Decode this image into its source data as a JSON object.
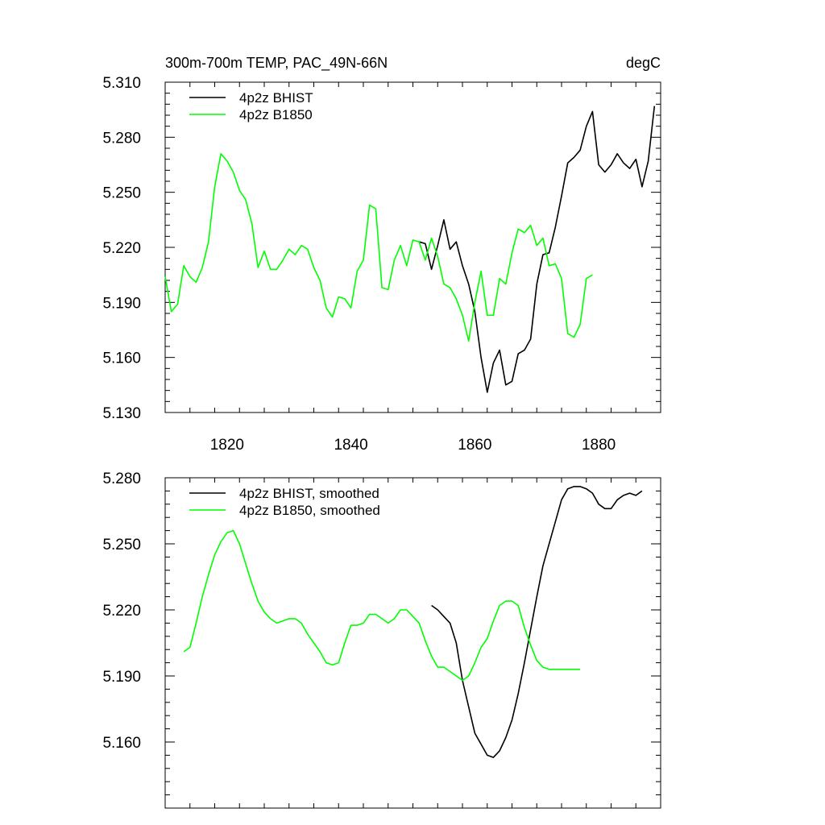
{
  "chart_data": [
    {
      "type": "line",
      "title_left": "300m-700m TEMP, PAC_49N-66N",
      "title_right": "degC",
      "xlim": [
        1810,
        1890
      ],
      "ylim": [
        5.13,
        5.31
      ],
      "y_ticks": [
        5.13,
        5.16,
        5.19,
        5.22,
        5.25,
        5.28,
        5.31
      ],
      "y_tick_labels": [
        "5.130",
        "5.160",
        "5.190",
        "5.220",
        "5.250",
        "5.280",
        "5.310"
      ],
      "x_ticks": [
        1820,
        1840,
        1860,
        1880
      ],
      "x_tick_labels": [
        "1820",
        "1840",
        "1860",
        "1880"
      ],
      "legend_position": "top-left",
      "series": [
        {
          "name": "4p2z BHIST",
          "color": "#000000",
          "x": [
            1851,
            1852,
            1853,
            1854,
            1855,
            1856,
            1857,
            1858,
            1859,
            1860,
            1861,
            1862,
            1863,
            1864,
            1865,
            1866,
            1867,
            1868,
            1869,
            1870,
            1871,
            1872,
            1873,
            1874,
            1875,
            1876,
            1877,
            1878,
            1879,
            1880,
            1881,
            1882,
            1883,
            1884,
            1885,
            1886,
            1887,
            1888,
            1889
          ],
          "y": [
            5.223,
            5.222,
            5.208,
            5.221,
            5.235,
            5.219,
            5.223,
            5.21,
            5.2,
            5.185,
            5.16,
            5.141,
            5.157,
            5.164,
            5.145,
            5.147,
            5.162,
            5.164,
            5.17,
            5.2,
            5.216,
            5.217,
            5.231,
            5.248,
            5.266,
            5.269,
            5.273,
            5.286,
            5.294,
            5.265,
            5.261,
            5.265,
            5.271,
            5.266,
            5.263,
            5.268,
            5.253,
            5.267,
            5.297
          ]
        },
        {
          "name": "4p2z B1850",
          "color": "#00ff00",
          "x": [
            1810,
            1811,
            1812,
            1813,
            1814,
            1815,
            1816,
            1817,
            1818,
            1819,
            1820,
            1821,
            1822,
            1823,
            1824,
            1825,
            1826,
            1827,
            1828,
            1829,
            1830,
            1831,
            1832,
            1833,
            1834,
            1835,
            1836,
            1837,
            1838,
            1839,
            1840,
            1841,
            1842,
            1843,
            1844,
            1845,
            1846,
            1847,
            1848,
            1849,
            1850,
            1851,
            1852,
            1853,
            1854,
            1855,
            1856,
            1857,
            1858,
            1859,
            1860,
            1861,
            1862,
            1863,
            1864,
            1865,
            1866,
            1867,
            1868,
            1869,
            1870,
            1871,
            1872,
            1873,
            1874,
            1875,
            1876,
            1877,
            1878,
            1879
          ],
          "y": [
            5.204,
            5.185,
            5.189,
            5.21,
            5.204,
            5.201,
            5.209,
            5.223,
            5.253,
            5.271,
            5.267,
            5.261,
            5.251,
            5.246,
            5.233,
            5.209,
            5.218,
            5.208,
            5.208,
            5.213,
            5.219,
            5.216,
            5.221,
            5.219,
            5.209,
            5.202,
            5.187,
            5.182,
            5.193,
            5.192,
            5.187,
            5.207,
            5.213,
            5.243,
            5.241,
            5.198,
            5.197,
            5.213,
            5.221,
            5.21,
            5.224,
            5.223,
            5.213,
            5.225,
            5.215,
            5.2,
            5.198,
            5.192,
            5.183,
            5.169,
            5.19,
            5.207,
            5.183,
            5.183,
            5.203,
            5.2,
            5.217,
            5.23,
            5.228,
            5.232,
            5.221,
            5.225,
            5.21,
            5.211,
            5.203,
            5.173,
            5.171,
            5.178,
            5.203,
            5.205
          ]
        }
      ]
    },
    {
      "type": "line",
      "xlim": [
        1810,
        1890
      ],
      "ylim": [
        5.13,
        5.28
      ],
      "y_ticks": [
        5.16,
        5.19,
        5.22,
        5.25,
        5.28
      ],
      "y_tick_labels": [
        "5.160",
        "5.190",
        "5.220",
        "5.250",
        "5.280"
      ],
      "x_ticks": [
        1820,
        1840,
        1860,
        1880
      ],
      "legend_position": "top-left",
      "series": [
        {
          "name": "4p2z BHIST, smoothed",
          "color": "#000000",
          "x": [
            1853,
            1854,
            1855,
            1856,
            1857,
            1858,
            1859,
            1860,
            1861,
            1862,
            1863,
            1864,
            1865,
            1866,
            1867,
            1868,
            1869,
            1870,
            1871,
            1872,
            1873,
            1874,
            1875,
            1876,
            1877,
            1878,
            1879,
            1880,
            1881,
            1882,
            1883,
            1884,
            1885,
            1886,
            1887
          ],
          "y": [
            5.222,
            5.22,
            5.217,
            5.214,
            5.205,
            5.188,
            5.176,
            5.164,
            5.159,
            5.154,
            5.153,
            5.156,
            5.162,
            5.17,
            5.182,
            5.196,
            5.211,
            5.226,
            5.24,
            5.25,
            5.26,
            5.27,
            5.275,
            5.276,
            5.276,
            5.275,
            5.273,
            5.268,
            5.266,
            5.266,
            5.27,
            5.272,
            5.273,
            5.272,
            5.274
          ]
        },
        {
          "name": "4p2z B1850, smoothed",
          "color": "#00ff00",
          "x": [
            1813,
            1814,
            1815,
            1816,
            1817,
            1818,
            1819,
            1820,
            1821,
            1822,
            1823,
            1824,
            1825,
            1826,
            1827,
            1828,
            1829,
            1830,
            1831,
            1832,
            1833,
            1834,
            1835,
            1836,
            1837,
            1838,
            1839,
            1840,
            1841,
            1842,
            1843,
            1844,
            1845,
            1846,
            1847,
            1848,
            1849,
            1850,
            1851,
            1852,
            1853,
            1854,
            1855,
            1856,
            1857,
            1858,
            1859,
            1860,
            1861,
            1862,
            1863,
            1864,
            1865,
            1866,
            1867,
            1868,
            1869,
            1870,
            1871,
            1872,
            1873,
            1874,
            1875,
            1876,
            1877
          ],
          "y": [
            5.201,
            5.203,
            5.214,
            5.226,
            5.236,
            5.245,
            5.251,
            5.255,
            5.256,
            5.25,
            5.241,
            5.232,
            5.224,
            5.219,
            5.216,
            5.214,
            5.215,
            5.216,
            5.216,
            5.214,
            5.209,
            5.205,
            5.201,
            5.196,
            5.195,
            5.196,
            5.205,
            5.213,
            5.213,
            5.214,
            5.218,
            5.218,
            5.216,
            5.214,
            5.216,
            5.22,
            5.22,
            5.217,
            5.214,
            5.206,
            5.199,
            5.194,
            5.194,
            5.192,
            5.19,
            5.188,
            5.19,
            5.196,
            5.203,
            5.207,
            5.215,
            5.222,
            5.224,
            5.224,
            5.222,
            5.212,
            5.204,
            5.197,
            5.194,
            5.193,
            5.193,
            5.193,
            5.193,
            5.193,
            5.193
          ]
        }
      ]
    }
  ]
}
